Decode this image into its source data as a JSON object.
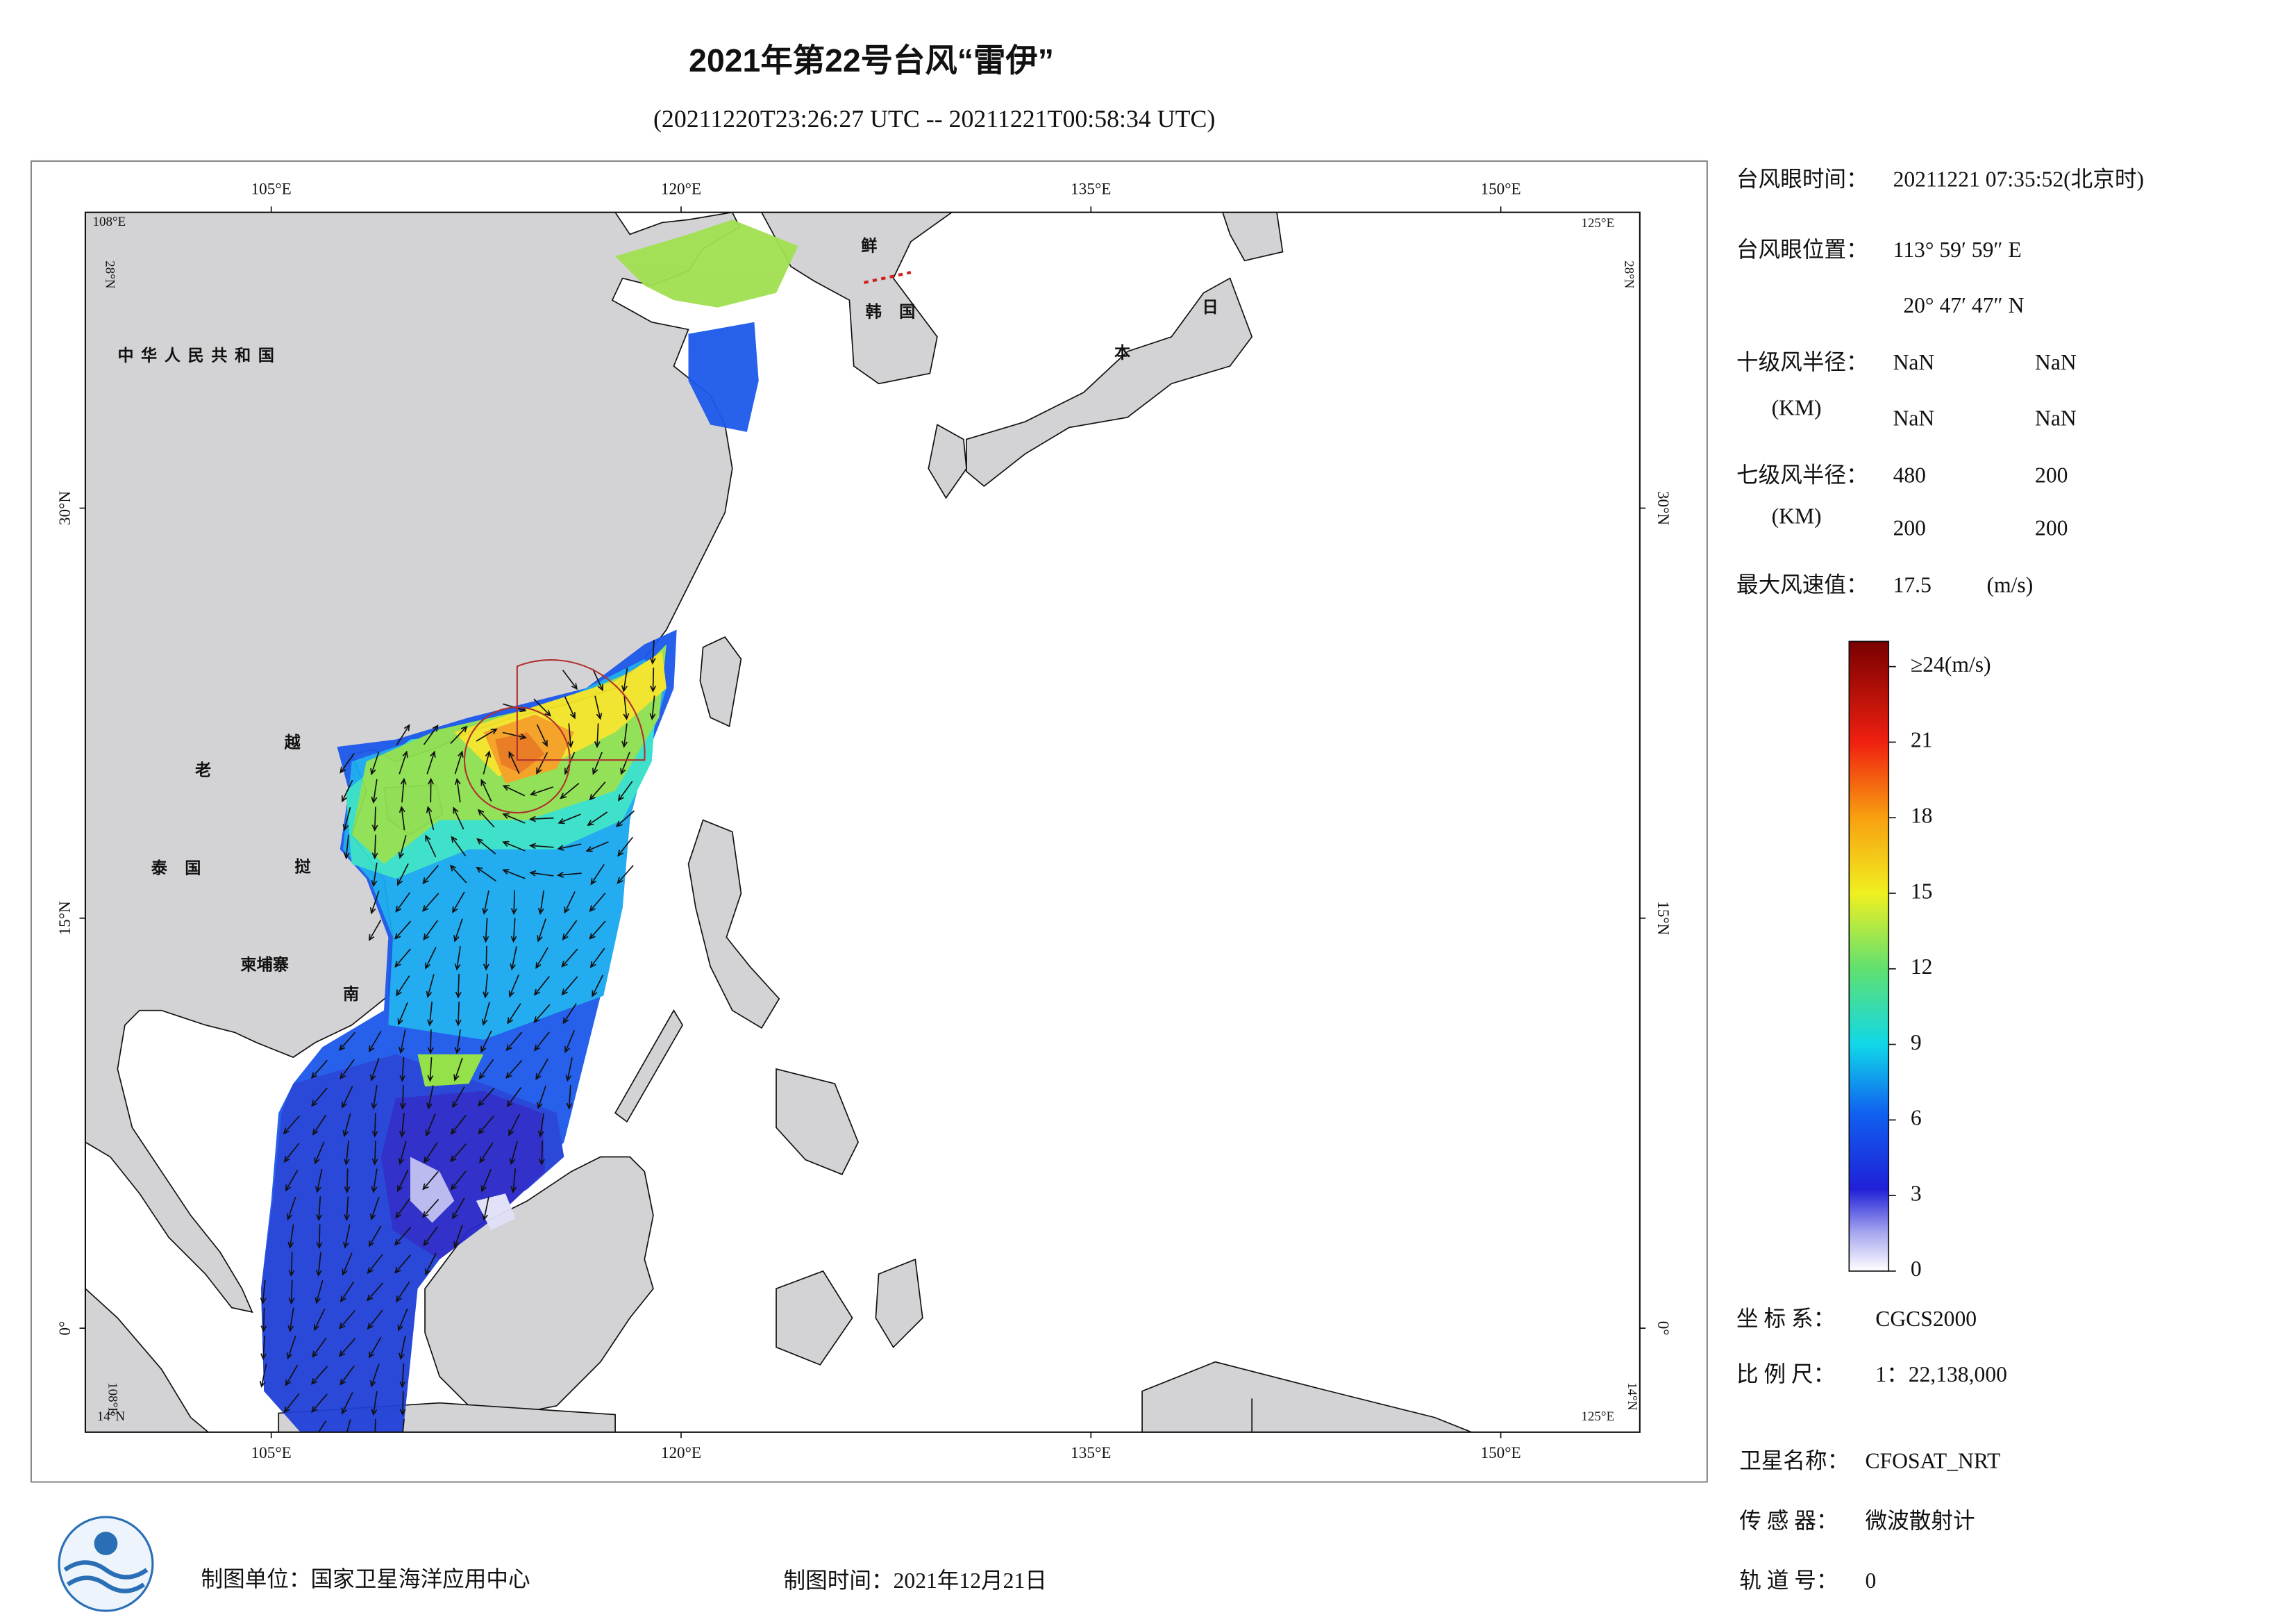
{
  "header": {
    "title": "2021年第22号台风“雷伊”",
    "subtitle": "(20211220T23:26:27 UTC -- 20211221T00:58:34 UTC)"
  },
  "map": {
    "lon_ticks": [
      {
        "value": 105,
        "label": "105°E"
      },
      {
        "value": 120,
        "label": "120°E"
      },
      {
        "value": 135,
        "label": "135°E"
      },
      {
        "value": 150,
        "label": "150°E"
      }
    ],
    "lat_ticks": [
      {
        "value": 30,
        "label": "30°N"
      },
      {
        "value": 15,
        "label": "15°N"
      },
      {
        "value": 0,
        "label": "0°"
      }
    ],
    "corner_labels": {
      "west": "108°E",
      "east": "125°E",
      "north": "28°N",
      "south": "14°N"
    },
    "place_labels": [
      "中华人民共和国",
      "老",
      "越",
      "泰国",
      "挝",
      "柬埔寨",
      "南",
      "鲜",
      "韩国",
      "日",
      "本"
    ]
  },
  "info": {
    "eye_time": {
      "label": "台风眼时间：",
      "value": "20211221 07:35:52(北京时)"
    },
    "eye_position": {
      "label": "台风眼位置：",
      "lon": "113° 59′ 59″ E",
      "lat": "20° 47′ 47″ N"
    },
    "r10": {
      "label": "十级风半径：",
      "unit": "(KM)",
      "values": [
        "NaN",
        "NaN",
        "NaN",
        "NaN"
      ]
    },
    "r7": {
      "label": "七级风半径：",
      "unit": "(KM)",
      "values": [
        480,
        200,
        200,
        200
      ]
    },
    "max_wind": {
      "label": "最大风速值：",
      "value": 17.5,
      "unit": "(m/s)"
    },
    "crs": {
      "label": "坐 标 系：",
      "value": "CGCS2000"
    },
    "scale": {
      "label": "比 例 尺：",
      "value": "1：22,138,000"
    },
    "satellite": {
      "label": "卫星名称：",
      "value": "CFOSAT_NRT"
    },
    "sensor": {
      "label": "传 感 器：",
      "value": "微波散射计"
    },
    "orbit": {
      "label": "轨 道 号：",
      "value": 0
    }
  },
  "colorbar": {
    "lim": [
      0,
      25
    ],
    "ticks": [
      0,
      3,
      6,
      9,
      12,
      15,
      18,
      21,
      {
        "value": 24,
        "label": "≥24(m/s)"
      }
    ]
  },
  "footer": {
    "unit": "制图单位：国家卫星海洋应用中心",
    "date": "制图时间：2021年12月21日"
  }
}
